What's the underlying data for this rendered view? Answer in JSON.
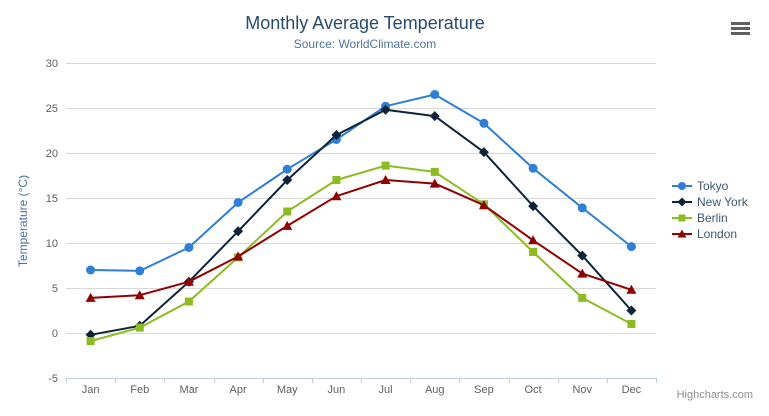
{
  "header": {
    "title": "Monthly Average Temperature",
    "subtitle": "Source: WorldClimate.com"
  },
  "credit_label": "Highcharts.com",
  "icons": {
    "menu": "hamburger-menu-icon"
  },
  "colors": {
    "title": "#274b6d",
    "subtitle": "#4d759e",
    "axis_label": "#606060",
    "axis_title": "#4572a7",
    "grid_line": "#d8d8d8",
    "axis_line": "#c0d0e0",
    "legend_text": "#3e576f",
    "credit": "#909090",
    "background": "#ffffff"
  },
  "chart_data": {
    "type": "line",
    "title": "Monthly Average Temperature",
    "subtitle": "Source: WorldClimate.com",
    "xlabel": "",
    "ylabel": "Temperature (°C)",
    "ylim": [
      -5,
      30
    ],
    "ytick_interval": 5,
    "grid": true,
    "legend_position": "right",
    "categories": [
      "Jan",
      "Feb",
      "Mar",
      "Apr",
      "May",
      "Jun",
      "Jul",
      "Aug",
      "Sep",
      "Oct",
      "Nov",
      "Dec"
    ],
    "series": [
      {
        "name": "Tokyo",
        "color": "#2f7ed8",
        "marker": "circle",
        "values": [
          7.0,
          6.9,
          9.5,
          14.5,
          18.2,
          21.5,
          25.2,
          26.5,
          23.3,
          18.3,
          13.9,
          9.6
        ]
      },
      {
        "name": "New York",
        "color": "#0d233a",
        "marker": "diamond",
        "values": [
          -0.2,
          0.8,
          5.7,
          11.3,
          17.0,
          22.0,
          24.8,
          24.1,
          20.1,
          14.1,
          8.6,
          2.5
        ]
      },
      {
        "name": "Berlin",
        "color": "#8bbc21",
        "marker": "square",
        "values": [
          -0.9,
          0.6,
          3.5,
          8.4,
          13.5,
          17.0,
          18.6,
          17.9,
          14.3,
          9.0,
          3.9,
          1.0
        ]
      },
      {
        "name": "London",
        "color": "#910000",
        "marker": "triangle",
        "values": [
          3.9,
          4.2,
          5.7,
          8.5,
          11.9,
          15.2,
          17.0,
          16.6,
          14.2,
          10.3,
          6.6,
          4.8
        ]
      }
    ]
  }
}
